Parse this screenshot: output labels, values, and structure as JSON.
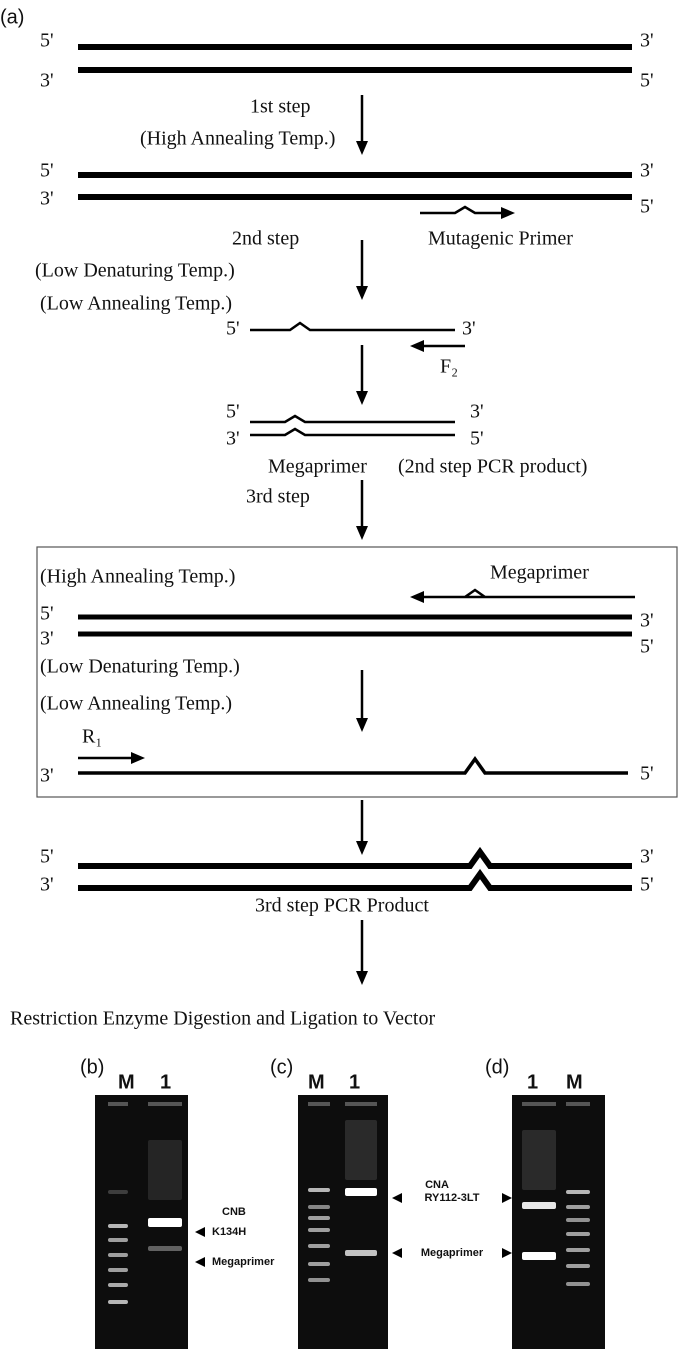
{
  "panel_a": {
    "label": "(a)",
    "template": {
      "top_left": "5'",
      "top_right": "3'",
      "bottom_left": "3'",
      "bottom_right": "5'"
    },
    "step1": {
      "title": "1st step",
      "conditions": [
        "(High Annealing Temp.)"
      ]
    },
    "step1_strands": {
      "top_left": "5'",
      "top_right": "3'",
      "bottom_left": "3'",
      "bottom_right": "5'"
    },
    "mutagenic_primer": "Mutagenic Primer",
    "step2": {
      "title": "2nd step",
      "conditions": [
        "(Low Denaturing Temp.)",
        "(Low Annealing Temp.)"
      ]
    },
    "single_strand": {
      "left": "5'",
      "right": "3'",
      "primer": "F₂"
    },
    "megaprimer_duplex": {
      "top_left": "5'",
      "top_right": "3'",
      "bottom_left": "3'",
      "bottom_right": "5'",
      "label": "Megaprimer",
      "note": "(2nd step PCR product)"
    },
    "step3": {
      "title": "3rd step",
      "box": {
        "condition": "(High Annealing Temp.)",
        "megaprimer": "Megaprimer",
        "strands": {
          "top_left": "5'",
          "top_right": "3'",
          "bottom_left": "3'",
          "bottom_right": "5'"
        },
        "conditions": [
          "(Low Denaturing Temp.)",
          "(Low Annealing Temp.)"
        ],
        "primer": "R₁",
        "single_left": "3'",
        "single_right": "5'"
      }
    },
    "product": {
      "top_left": "5'",
      "top_right": "3'",
      "bottom_left": "3'",
      "bottom_right": "5'",
      "label": "3rd step PCR Product"
    },
    "final": "Restriction Enzyme Digestion and Ligation to Vector"
  },
  "gels": [
    {
      "label": "(b)",
      "lanes": [
        "M",
        "1"
      ],
      "product": [
        "CNB",
        "K134H"
      ],
      "megaprimer": "Megaprimer"
    },
    {
      "label": "(c)",
      "lanes": [
        "M",
        "1"
      ],
      "product": [
        "CNA",
        "RY112-3LT"
      ],
      "megaprimer": "Megaprimer"
    },
    {
      "label": "(d)",
      "lanes": [
        "1",
        "M"
      ]
    }
  ]
}
